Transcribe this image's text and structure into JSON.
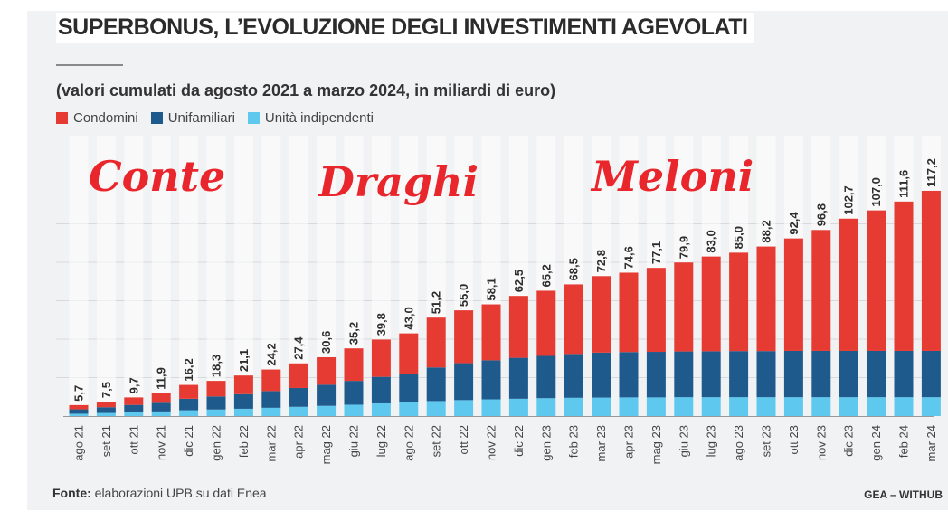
{
  "title": "SUPERBONUS, L’EVOLUZIONE DEGLI INVESTIMENTI AGEVOLATI",
  "subtitle": "(valori cumulati da agosto 2021 a marzo 2024, in miliardi di euro)",
  "source_label": "Fonte:",
  "source_text": "elaborazioni UPB su dati Enea",
  "credit": "GEA – WITHUB",
  "overlays": {
    "conte": "Conte",
    "draghi": "Draghi",
    "meloni": "Meloni"
  },
  "colors": {
    "condomini": "#e63b33",
    "unifamiliari": "#1f5a8c",
    "indipendenti": "#5ec8ee",
    "overlay": "#e8262b"
  },
  "chart_data": {
    "type": "bar",
    "stacked": true,
    "legend_position": "top-left",
    "categories": [
      "ago 21",
      "set 21",
      "ott 21",
      "nov 21",
      "dic 21",
      "gen 22",
      "feb 22",
      "mar 22",
      "apr 22",
      "mag 22",
      "giu 22",
      "lug 22",
      "ago 22",
      "set 22",
      "ott 22",
      "nov 22",
      "dic 22",
      "gen 23",
      "feb 23",
      "mar 23",
      "apr 23",
      "mag 23",
      "giu 23",
      "lug 23",
      "ago 23",
      "set 23",
      "ott 23",
      "nov 23",
      "dic 23",
      "gen 24",
      "feb 24",
      "mar 24"
    ],
    "totals": [
      5.7,
      7.5,
      9.7,
      11.9,
      16.2,
      18.3,
      21.1,
      24.2,
      27.4,
      30.6,
      35.2,
      39.8,
      43.0,
      51.2,
      55.0,
      58.1,
      62.5,
      65.2,
      68.5,
      72.8,
      74.6,
      77.1,
      79.9,
      83.0,
      85.0,
      88.2,
      92.4,
      96.8,
      102.7,
      107.0,
      111.6,
      117.2
    ],
    "total_labels": [
      "5,7",
      "7,5",
      "9,7",
      "11,9",
      "16,2",
      "18,3",
      "21,1",
      "24,2",
      "27,4",
      "30,6",
      "35,2",
      "39,8",
      "43,0",
      "51,2",
      "55,0",
      "58,1",
      "62,5",
      "65,2",
      "68,5",
      "72,8",
      "74,6",
      "77,1",
      "79,9",
      "83,0",
      "85,0",
      "88,2",
      "92,4",
      "96,8",
      "102,7",
      "107,0",
      "111,6",
      "117,2"
    ],
    "series": [
      {
        "name": "Unità indipendenti",
        "color": "#5ec8ee",
        "values": [
          1.2,
          1.6,
          2.0,
          2.4,
          3.0,
          3.4,
          3.8,
          4.3,
          4.8,
          5.3,
          5.9,
          6.6,
          7.1,
          7.8,
          8.3,
          8.7,
          9.0,
          9.3,
          9.5,
          9.6,
          9.7,
          9.7,
          9.8,
          9.8,
          9.8,
          9.8,
          9.8,
          9.8,
          9.8,
          9.8,
          9.8,
          9.8
        ]
      },
      {
        "name": "Unifamiliari",
        "color": "#1f5a8c",
        "values": [
          2.3,
          3.0,
          3.8,
          4.5,
          6.0,
          6.8,
          7.6,
          8.7,
          9.8,
          11.0,
          12.4,
          13.8,
          14.9,
          17.5,
          19.2,
          20.3,
          21.3,
          22.0,
          22.8,
          23.4,
          23.6,
          23.7,
          23.8,
          23.9,
          24.0,
          24.0,
          24.1,
          24.1,
          24.1,
          24.1,
          24.1,
          24.1
        ]
      },
      {
        "name": "Condomini",
        "color": "#e63b33",
        "values": [
          2.2,
          2.9,
          3.9,
          5.0,
          7.2,
          8.1,
          9.7,
          11.2,
          12.8,
          14.3,
          16.9,
          19.4,
          21.0,
          25.9,
          27.5,
          29.1,
          32.2,
          33.9,
          36.2,
          39.8,
          41.3,
          43.7,
          46.3,
          49.3,
          51.2,
          54.4,
          58.5,
          62.9,
          68.8,
          73.1,
          77.7,
          83.3
        ]
      }
    ],
    "ylim": [
      0,
      120
    ],
    "grid": true
  }
}
